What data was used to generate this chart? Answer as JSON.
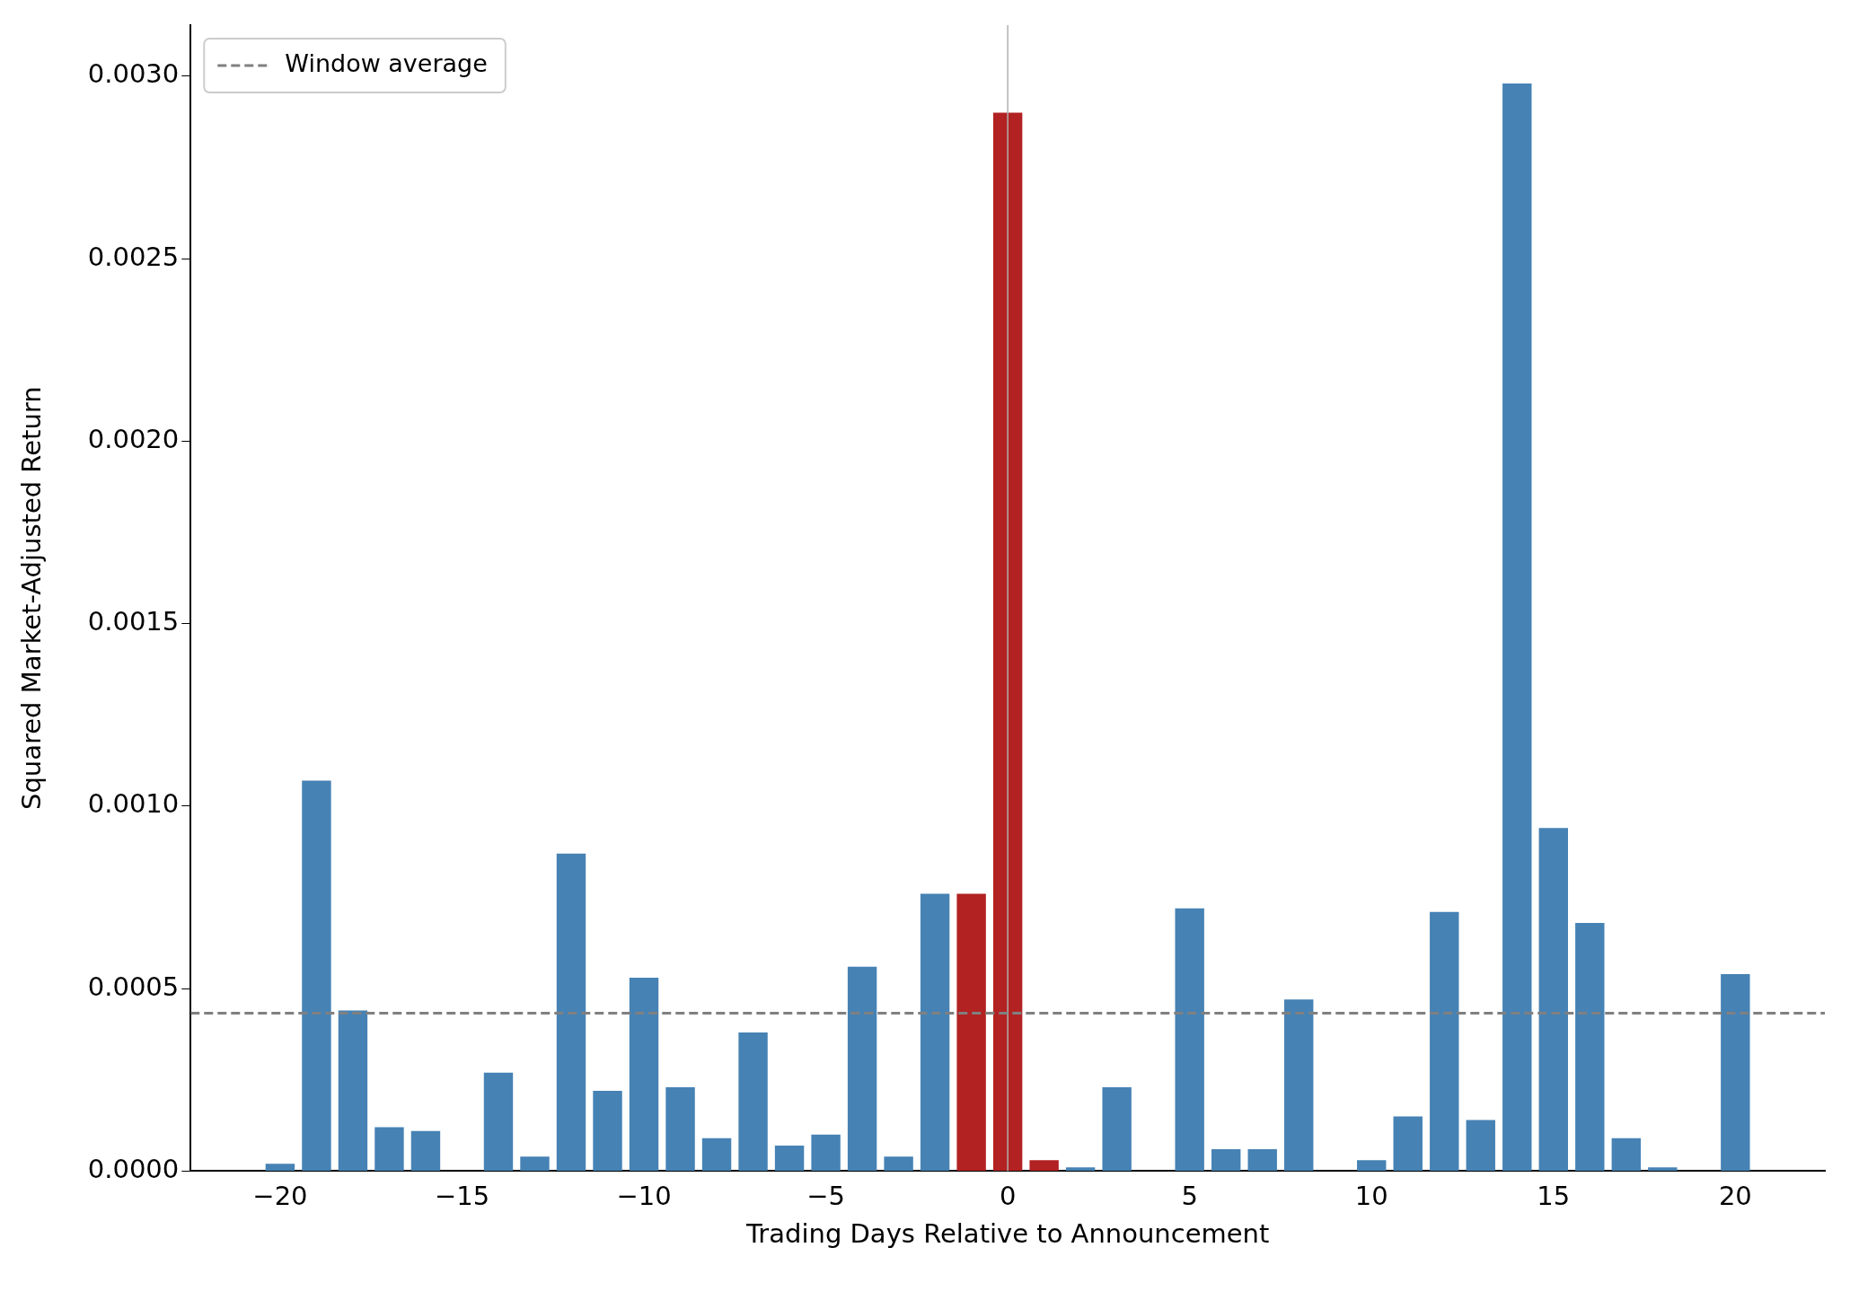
{
  "chart_data": {
    "type": "bar",
    "xlabel": "Trading Days Relative to Announcement",
    "ylabel": "Squared Market-Adjusted Return",
    "x": [
      -20,
      -19,
      -18,
      -17,
      -16,
      -15,
      -14,
      -13,
      -12,
      -11,
      -10,
      -9,
      -8,
      -7,
      -6,
      -5,
      -4,
      -3,
      -2,
      -1,
      0,
      1,
      2,
      3,
      4,
      5,
      6,
      7,
      8,
      9,
      10,
      11,
      12,
      13,
      14,
      15,
      16,
      17,
      18,
      19,
      20
    ],
    "values": [
      2e-05,
      0.00107,
      0.00044,
      0.00012,
      0.00011,
      0,
      0.00027,
      4e-05,
      0.00087,
      0.00022,
      0.00053,
      0.00023,
      9e-05,
      0.00038,
      7e-05,
      0.0001,
      0.00056,
      4e-05,
      0.00076,
      0.00076,
      0.0029,
      3e-05,
      1e-05,
      0.00023,
      0,
      0.00072,
      6e-05,
      6e-05,
      0.00047,
      0,
      3e-05,
      0.00015,
      0.00071,
      0.00014,
      0.00298,
      0.00094,
      0.00068,
      9e-05,
      1e-05,
      0,
      0.00054
    ],
    "colors": [
      "#4682b4",
      "#4682b4",
      "#4682b4",
      "#4682b4",
      "#4682b4",
      "#4682b4",
      "#4682b4",
      "#4682b4",
      "#4682b4",
      "#4682b4",
      "#4682b4",
      "#4682b4",
      "#4682b4",
      "#4682b4",
      "#4682b4",
      "#4682b4",
      "#4682b4",
      "#4682b4",
      "#4682b4",
      "#b22222",
      "#b22222",
      "#b22222",
      "#4682b4",
      "#4682b4",
      "#4682b4",
      "#4682b4",
      "#4682b4",
      "#4682b4",
      "#4682b4",
      "#4682b4",
      "#4682b4",
      "#4682b4",
      "#4682b4",
      "#4682b4",
      "#4682b4",
      "#4682b4",
      "#4682b4",
      "#4682b4",
      "#4682b4",
      "#4682b4",
      "#4682b4"
    ],
    "xlim": [
      -22.46,
      22.46
    ],
    "xticks": [
      {
        "value": -20,
        "label": "−20"
      },
      {
        "value": -15,
        "label": "−15"
      },
      {
        "value": -10,
        "label": "−10"
      },
      {
        "value": -5,
        "label": "−5"
      },
      0,
      5,
      10,
      15,
      20
    ],
    "ylim": [
      0,
      0.00314
    ],
    "yticks": [
      {
        "value": 0,
        "label": "0.0000"
      },
      {
        "value": 0.0005,
        "label": "0.0005"
      },
      {
        "value": 0.001,
        "label": "0.0010"
      },
      {
        "value": 0.0015,
        "label": "0.0015"
      },
      {
        "value": 0.002,
        "label": "0.0020"
      },
      {
        "value": 0.0025,
        "label": "0.0025"
      },
      {
        "value": 0.003,
        "label": "0.0030"
      }
    ],
    "ref_lines": [
      {
        "axis": "y",
        "value": 0.000433,
        "label": "Window average",
        "color": "#808080",
        "line_style": "dashed"
      },
      {
        "axis": "x",
        "value": 0,
        "color": "#b0b0b0",
        "line_style": "solid"
      }
    ],
    "grid": false,
    "legend": "top left"
  }
}
